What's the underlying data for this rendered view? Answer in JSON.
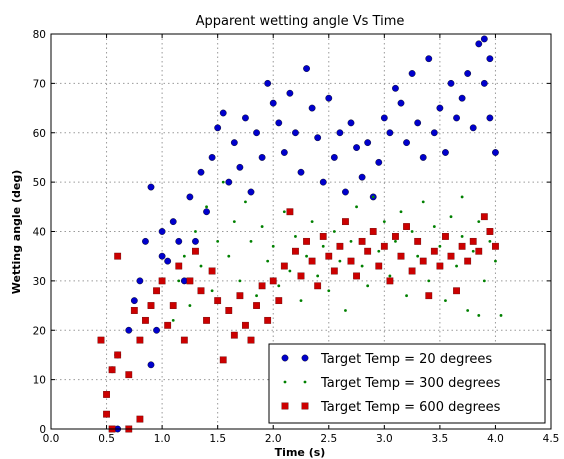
{
  "chart_data": {
    "type": "scatter",
    "title": "Apparent wetting angle Vs Time",
    "xlabel": "Time (s)",
    "ylabel": "Wetting angle (deg)",
    "xlim": [
      0.0,
      4.5
    ],
    "ylim": [
      0,
      80
    ],
    "xticks": [
      "0.0",
      "0.5",
      "1.0",
      "1.5",
      "2.0",
      "2.5",
      "3.0",
      "3.5",
      "4.0",
      "4.5"
    ],
    "yticks": [
      "0",
      "10",
      "20",
      "30",
      "40",
      "50",
      "60",
      "70",
      "80"
    ],
    "grid": true,
    "legend_position": "lower-right",
    "series": [
      {
        "name": "Target Temp = 20 degrees",
        "marker": "circle",
        "color": "#0000cc",
        "points": [
          [
            0.6,
            0
          ],
          [
            0.55,
            12
          ],
          [
            0.6,
            15
          ],
          [
            0.7,
            20
          ],
          [
            0.75,
            26
          ],
          [
            0.8,
            30
          ],
          [
            0.85,
            38
          ],
          [
            0.9,
            49
          ],
          [
            0.9,
            13
          ],
          [
            0.95,
            20
          ],
          [
            1.0,
            35
          ],
          [
            1.0,
            40
          ],
          [
            1.05,
            34
          ],
          [
            1.1,
            42
          ],
          [
            1.15,
            38
          ],
          [
            1.2,
            30
          ],
          [
            1.25,
            47
          ],
          [
            1.3,
            38
          ],
          [
            1.35,
            52
          ],
          [
            1.4,
            44
          ],
          [
            1.45,
            55
          ],
          [
            1.5,
            61
          ],
          [
            1.55,
            64
          ],
          [
            1.6,
            50
          ],
          [
            1.65,
            58
          ],
          [
            1.7,
            53
          ],
          [
            1.75,
            63
          ],
          [
            1.8,
            48
          ],
          [
            1.85,
            60
          ],
          [
            1.9,
            55
          ],
          [
            1.95,
            70
          ],
          [
            2.0,
            66
          ],
          [
            2.05,
            62
          ],
          [
            2.1,
            56
          ],
          [
            2.15,
            68
          ],
          [
            2.2,
            60
          ],
          [
            2.25,
            52
          ],
          [
            2.3,
            73
          ],
          [
            2.35,
            65
          ],
          [
            2.4,
            59
          ],
          [
            2.45,
            50
          ],
          [
            2.5,
            67
          ],
          [
            2.55,
            55
          ],
          [
            2.6,
            60
          ],
          [
            2.65,
            48
          ],
          [
            2.7,
            62
          ],
          [
            2.75,
            57
          ],
          [
            2.8,
            51
          ],
          [
            2.85,
            58
          ],
          [
            2.9,
            47
          ],
          [
            2.95,
            54
          ],
          [
            3.0,
            63
          ],
          [
            3.05,
            60
          ],
          [
            3.1,
            69
          ],
          [
            3.15,
            66
          ],
          [
            3.2,
            58
          ],
          [
            3.25,
            72
          ],
          [
            3.3,
            62
          ],
          [
            3.35,
            55
          ],
          [
            3.4,
            75
          ],
          [
            3.45,
            60
          ],
          [
            3.5,
            65
          ],
          [
            3.55,
            56
          ],
          [
            3.6,
            70
          ],
          [
            3.65,
            63
          ],
          [
            3.7,
            67
          ],
          [
            3.75,
            72
          ],
          [
            3.8,
            61
          ],
          [
            3.85,
            78
          ],
          [
            3.9,
            70
          ],
          [
            3.95,
            63
          ],
          [
            4.0,
            56
          ],
          [
            3.9,
            79
          ],
          [
            3.95,
            75
          ]
        ]
      },
      {
        "name": "Target Temp = 300 degrees",
        "marker": "point",
        "color": "#008000",
        "points": [
          [
            1.1,
            22
          ],
          [
            1.15,
            30
          ],
          [
            1.2,
            35
          ],
          [
            1.25,
            25
          ],
          [
            1.3,
            40
          ],
          [
            1.35,
            33
          ],
          [
            1.4,
            45
          ],
          [
            1.45,
            28
          ],
          [
            1.5,
            38
          ],
          [
            1.55,
            50
          ],
          [
            1.6,
            35
          ],
          [
            1.65,
            42
          ],
          [
            1.7,
            30
          ],
          [
            1.75,
            46
          ],
          [
            1.8,
            38
          ],
          [
            1.85,
            27
          ],
          [
            1.9,
            41
          ],
          [
            1.95,
            34
          ],
          [
            2.0,
            37
          ],
          [
            2.05,
            29
          ],
          [
            2.1,
            44
          ],
          [
            2.15,
            32
          ],
          [
            2.2,
            39
          ],
          [
            2.25,
            26
          ],
          [
            2.3,
            35
          ],
          [
            2.35,
            42
          ],
          [
            2.4,
            31
          ],
          [
            2.45,
            37
          ],
          [
            2.5,
            28
          ],
          [
            2.55,
            40
          ],
          [
            2.6,
            34
          ],
          [
            2.65,
            24
          ],
          [
            2.7,
            38
          ],
          [
            2.75,
            45
          ],
          [
            2.8,
            33
          ],
          [
            2.85,
            29
          ],
          [
            2.9,
            47
          ],
          [
            2.95,
            36
          ],
          [
            3.0,
            42
          ],
          [
            3.05,
            31
          ],
          [
            3.1,
            38
          ],
          [
            3.15,
            44
          ],
          [
            3.2,
            27
          ],
          [
            3.25,
            40
          ],
          [
            3.3,
            35
          ],
          [
            3.35,
            46
          ],
          [
            3.4,
            30
          ],
          [
            3.45,
            41
          ],
          [
            3.5,
            37
          ],
          [
            3.55,
            26
          ],
          [
            3.6,
            43
          ],
          [
            3.65,
            33
          ],
          [
            3.7,
            39
          ],
          [
            3.75,
            24
          ],
          [
            3.8,
            36
          ],
          [
            3.85,
            42
          ],
          [
            3.9,
            30
          ],
          [
            3.95,
            38
          ],
          [
            4.0,
            34
          ],
          [
            4.05,
            23
          ],
          [
            3.85,
            23
          ],
          [
            3.7,
            47
          ]
        ]
      },
      {
        "name": "Target Temp = 600 degrees",
        "marker": "square",
        "color": "#cc0000",
        "points": [
          [
            0.45,
            18
          ],
          [
            0.5,
            7
          ],
          [
            0.5,
            3
          ],
          [
            0.55,
            0
          ],
          [
            0.55,
            12
          ],
          [
            0.6,
            15
          ],
          [
            0.6,
            35
          ],
          [
            0.7,
            11
          ],
          [
            0.7,
            0
          ],
          [
            0.75,
            24
          ],
          [
            0.8,
            18
          ],
          [
            0.8,
            2
          ],
          [
            0.85,
            22
          ],
          [
            0.9,
            25
          ],
          [
            0.95,
            28
          ],
          [
            1.0,
            30
          ],
          [
            1.05,
            21
          ],
          [
            1.1,
            25
          ],
          [
            1.15,
            33
          ],
          [
            1.2,
            18
          ],
          [
            1.25,
            30
          ],
          [
            1.3,
            36
          ],
          [
            1.35,
            28
          ],
          [
            1.4,
            22
          ],
          [
            1.45,
            32
          ],
          [
            1.5,
            26
          ],
          [
            1.55,
            14
          ],
          [
            1.6,
            24
          ],
          [
            1.65,
            19
          ],
          [
            1.7,
            27
          ],
          [
            1.75,
            21
          ],
          [
            1.8,
            18
          ],
          [
            1.85,
            25
          ],
          [
            1.9,
            29
          ],
          [
            1.95,
            22
          ],
          [
            2.0,
            30
          ],
          [
            2.05,
            26
          ],
          [
            2.1,
            33
          ],
          [
            2.15,
            44
          ],
          [
            2.2,
            36
          ],
          [
            2.25,
            31
          ],
          [
            2.3,
            38
          ],
          [
            2.35,
            34
          ],
          [
            2.4,
            29
          ],
          [
            2.45,
            39
          ],
          [
            2.5,
            35
          ],
          [
            2.55,
            32
          ],
          [
            2.6,
            37
          ],
          [
            2.65,
            42
          ],
          [
            2.7,
            34
          ],
          [
            2.75,
            31
          ],
          [
            2.8,
            38
          ],
          [
            2.85,
            36
          ],
          [
            2.9,
            40
          ],
          [
            2.95,
            33
          ],
          [
            3.0,
            37
          ],
          [
            3.05,
            30
          ],
          [
            3.1,
            39
          ],
          [
            3.15,
            35
          ],
          [
            3.2,
            41
          ],
          [
            3.25,
            32
          ],
          [
            3.3,
            38
          ],
          [
            3.35,
            34
          ],
          [
            3.4,
            27
          ],
          [
            3.45,
            36
          ],
          [
            3.5,
            33
          ],
          [
            3.55,
            39
          ],
          [
            3.6,
            35
          ],
          [
            3.65,
            28
          ],
          [
            3.7,
            37
          ],
          [
            3.75,
            34
          ],
          [
            3.8,
            38
          ],
          [
            3.85,
            36
          ],
          [
            3.9,
            43
          ],
          [
            3.95,
            40
          ],
          [
            4.0,
            37
          ]
        ]
      }
    ]
  }
}
